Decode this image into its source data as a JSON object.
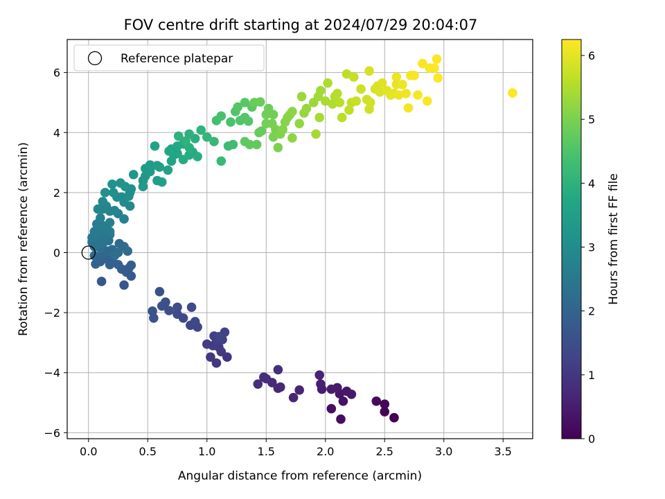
{
  "chart_data": {
    "type": "scatter",
    "title": "FOV centre drift starting at 2024/07/29 20:04:07",
    "xlabel": "Angular distance from reference (arcmin)",
    "ylabel": "Rotation from reference (arcmin)",
    "xlim": [
      -0.18,
      3.75
    ],
    "ylim": [
      -6.2,
      7.1
    ],
    "xticks": [
      0.0,
      0.5,
      1.0,
      1.5,
      2.0,
      2.5,
      3.0,
      3.5
    ],
    "xtick_labels": [
      "0.0",
      "0.5",
      "1.0",
      "1.5",
      "2.0",
      "2.5",
      "3.0",
      "3.5"
    ],
    "yticks": [
      -6,
      -4,
      -2,
      0,
      2,
      4,
      6
    ],
    "ytick_labels": [
      "−6",
      "−4",
      "−2",
      "0",
      "2",
      "4",
      "6"
    ],
    "grid": true,
    "legend_position": "top-left",
    "legend": [
      {
        "label": "Reference platepar",
        "marker": "hollow-circle",
        "x": 0.0,
        "y": 0.0
      }
    ],
    "colorbar": {
      "label": "Hours from first FF file",
      "colormap": "viridis",
      "range": [
        0,
        6.25
      ],
      "ticks": [
        0,
        1,
        2,
        3,
        4,
        5,
        6
      ],
      "tick_labels": [
        "0",
        "1",
        "2",
        "3",
        "4",
        "5",
        "6"
      ]
    },
    "points": [
      {
        "x": 2.58,
        "y": -5.5,
        "c": 0.0
      },
      {
        "x": 2.5,
        "y": -5.3,
        "c": 0.05
      },
      {
        "x": 2.5,
        "y": -5.05,
        "c": 0.1
      },
      {
        "x": 2.43,
        "y": -4.95,
        "c": 0.15
      },
      {
        "x": 2.13,
        "y": -5.55,
        "c": 0.2
      },
      {
        "x": 2.05,
        "y": -5.2,
        "c": 0.25
      },
      {
        "x": 2.15,
        "y": -4.95,
        "c": 0.3
      },
      {
        "x": 2.12,
        "y": -4.7,
        "c": 0.35
      },
      {
        "x": 2.18,
        "y": -4.62,
        "c": 0.4
      },
      {
        "x": 2.22,
        "y": -4.72,
        "c": 0.42
      },
      {
        "x": 2.1,
        "y": -4.5,
        "c": 0.45
      },
      {
        "x": 2.05,
        "y": -4.55,
        "c": 0.48
      },
      {
        "x": 1.97,
        "y": -4.55,
        "c": 0.5
      },
      {
        "x": 1.96,
        "y": -4.38,
        "c": 0.55
      },
      {
        "x": 1.95,
        "y": -4.08,
        "c": 0.6
      },
      {
        "x": 1.78,
        "y": -4.58,
        "c": 0.62
      },
      {
        "x": 1.73,
        "y": -4.83,
        "c": 0.65
      },
      {
        "x": 1.62,
        "y": -4.48,
        "c": 0.7
      },
      {
        "x": 1.6,
        "y": -4.52,
        "c": 0.72
      },
      {
        "x": 1.55,
        "y": -4.33,
        "c": 0.75
      },
      {
        "x": 1.5,
        "y": -4.2,
        "c": 0.78
      },
      {
        "x": 1.48,
        "y": -4.15,
        "c": 0.8
      },
      {
        "x": 1.43,
        "y": -4.38,
        "c": 0.82
      },
      {
        "x": 1.6,
        "y": -3.9,
        "c": 0.85
      },
      {
        "x": 1.17,
        "y": -3.48,
        "c": 0.95
      },
      {
        "x": 1.08,
        "y": -3.68,
        "c": 1.0
      },
      {
        "x": 1.03,
        "y": -3.48,
        "c": 1.02
      },
      {
        "x": 1.1,
        "y": -3.15,
        "c": 1.05
      },
      {
        "x": 1.12,
        "y": -3.3,
        "c": 1.08
      },
      {
        "x": 1.0,
        "y": -3.05,
        "c": 1.1
      },
      {
        "x": 1.05,
        "y": -3.1,
        "c": 1.12
      },
      {
        "x": 1.08,
        "y": -2.9,
        "c": 1.15
      },
      {
        "x": 1.06,
        "y": -2.78,
        "c": 1.18
      },
      {
        "x": 1.13,
        "y": -2.9,
        "c": 1.2
      },
      {
        "x": 1.15,
        "y": -2.65,
        "c": 1.22
      },
      {
        "x": 1.1,
        "y": -2.8,
        "c": 1.25
      },
      {
        "x": 0.92,
        "y": -2.48,
        "c": 1.3
      },
      {
        "x": 0.86,
        "y": -2.42,
        "c": 1.32
      },
      {
        "x": 0.9,
        "y": -2.3,
        "c": 1.35
      },
      {
        "x": 0.87,
        "y": -1.82,
        "c": 1.38
      },
      {
        "x": 0.8,
        "y": -2.18,
        "c": 1.4
      },
      {
        "x": 0.75,
        "y": -2.05,
        "c": 1.42
      },
      {
        "x": 0.75,
        "y": -1.82,
        "c": 1.45
      },
      {
        "x": 0.68,
        "y": -1.93,
        "c": 1.48
      },
      {
        "x": 0.65,
        "y": -1.65,
        "c": 1.5
      },
      {
        "x": 0.62,
        "y": -1.78,
        "c": 1.52
      },
      {
        "x": 0.6,
        "y": -1.3,
        "c": 1.55
      },
      {
        "x": 0.55,
        "y": -2.18,
        "c": 1.58
      },
      {
        "x": 0.54,
        "y": -1.95,
        "c": 1.6
      },
      {
        "x": 0.3,
        "y": -1.08,
        "c": 1.7
      },
      {
        "x": 0.11,
        "y": -0.96,
        "c": 1.72
      },
      {
        "x": 0.36,
        "y": -0.78,
        "c": 1.75
      },
      {
        "x": 0.32,
        "y": -0.65,
        "c": 1.78
      },
      {
        "x": 0.34,
        "y": -0.52,
        "c": 1.8
      },
      {
        "x": 0.36,
        "y": -0.42,
        "c": 1.82
      },
      {
        "x": 0.28,
        "y": -0.55,
        "c": 1.85
      },
      {
        "x": 0.25,
        "y": -0.4,
        "c": 1.88
      },
      {
        "x": 0.2,
        "y": -0.3,
        "c": 1.9
      },
      {
        "x": 0.18,
        "y": -0.4,
        "c": 1.92
      },
      {
        "x": 0.15,
        "y": -0.2,
        "c": 1.95
      },
      {
        "x": 0.1,
        "y": -0.3,
        "c": 1.98
      },
      {
        "x": 0.06,
        "y": -0.38,
        "c": 2.0
      },
      {
        "x": 0.08,
        "y": -0.15,
        "c": 2.02
      },
      {
        "x": 0.12,
        "y": -0.05,
        "c": 2.05
      },
      {
        "x": 0.05,
        "y": -0.1,
        "c": 2.08
      },
      {
        "x": 0.16,
        "y": 0.05,
        "c": 2.1
      },
      {
        "x": 0.2,
        "y": 0.1,
        "c": 2.12
      },
      {
        "x": 0.26,
        "y": 0.3,
        "c": 2.15
      },
      {
        "x": 0.3,
        "y": 0.2,
        "c": 2.18
      },
      {
        "x": 0.33,
        "y": 0.05,
        "c": 2.2
      },
      {
        "x": 0.25,
        "y": 0.0,
        "c": 2.22
      },
      {
        "x": 0.22,
        "y": -0.1,
        "c": 2.25
      },
      {
        "x": 0.1,
        "y": 0.15,
        "c": 2.28
      },
      {
        "x": 0.05,
        "y": 0.2,
        "c": 2.3
      },
      {
        "x": 0.03,
        "y": 0.35,
        "c": 2.32
      },
      {
        "x": 0.08,
        "y": 0.4,
        "c": 2.35
      },
      {
        "x": 0.12,
        "y": 0.3,
        "c": 2.38
      },
      {
        "x": 0.17,
        "y": 0.4,
        "c": 2.4
      },
      {
        "x": 0.18,
        "y": 0.6,
        "c": 2.42
      },
      {
        "x": 0.12,
        "y": 0.6,
        "c": 2.45
      },
      {
        "x": 0.07,
        "y": 0.55,
        "c": 2.48
      },
      {
        "x": 0.03,
        "y": 0.5,
        "c": 2.5
      },
      {
        "x": 0.05,
        "y": 0.7,
        "c": 2.52
      },
      {
        "x": 0.1,
        "y": 0.75,
        "c": 2.55
      },
      {
        "x": 0.15,
        "y": 0.75,
        "c": 2.58
      },
      {
        "x": 0.18,
        "y": 0.7,
        "c": 2.6
      },
      {
        "x": 0.12,
        "y": 0.9,
        "c": 2.62
      },
      {
        "x": 0.07,
        "y": 0.95,
        "c": 2.65
      },
      {
        "x": 0.18,
        "y": 1.0,
        "c": 2.68
      },
      {
        "x": 0.1,
        "y": 1.15,
        "c": 2.7
      },
      {
        "x": 0.3,
        "y": 1.12,
        "c": 2.72
      },
      {
        "x": 0.25,
        "y": 1.3,
        "c": 2.75
      },
      {
        "x": 0.18,
        "y": 1.38,
        "c": 2.78
      },
      {
        "x": 0.12,
        "y": 1.45,
        "c": 2.8
      },
      {
        "x": 0.08,
        "y": 1.45,
        "c": 2.82
      },
      {
        "x": 0.22,
        "y": 1.4,
        "c": 2.85
      },
      {
        "x": 0.15,
        "y": 1.55,
        "c": 2.88
      },
      {
        "x": 0.12,
        "y": 1.7,
        "c": 2.9
      },
      {
        "x": 0.35,
        "y": 1.55,
        "c": 2.92
      },
      {
        "x": 0.3,
        "y": 1.68,
        "c": 2.95
      },
      {
        "x": 0.28,
        "y": 1.85,
        "c": 2.98
      },
      {
        "x": 0.24,
        "y": 1.85,
        "c": 3.0
      },
      {
        "x": 0.34,
        "y": 1.88,
        "c": 3.02
      },
      {
        "x": 0.35,
        "y": 2.0,
        "c": 3.05
      },
      {
        "x": 0.36,
        "y": 2.12,
        "c": 3.08
      },
      {
        "x": 0.21,
        "y": 2.0,
        "c": 3.1
      },
      {
        "x": 0.14,
        "y": 2.0,
        "c": 3.12
      },
      {
        "x": 0.2,
        "y": 2.28,
        "c": 3.15
      },
      {
        "x": 0.27,
        "y": 2.32,
        "c": 3.18
      },
      {
        "x": 0.31,
        "y": 2.2,
        "c": 3.2
      },
      {
        "x": 0.38,
        "y": 2.6,
        "c": 3.25
      },
      {
        "x": 0.46,
        "y": 2.4,
        "c": 3.3
      },
      {
        "x": 0.46,
        "y": 2.2,
        "c": 3.32
      },
      {
        "x": 0.48,
        "y": 2.55,
        "c": 3.35
      },
      {
        "x": 0.52,
        "y": 2.7,
        "c": 3.38
      },
      {
        "x": 0.48,
        "y": 2.8,
        "c": 3.4
      },
      {
        "x": 0.52,
        "y": 2.92,
        "c": 3.42
      },
      {
        "x": 0.58,
        "y": 2.9,
        "c": 3.45
      },
      {
        "x": 0.6,
        "y": 2.85,
        "c": 3.48
      },
      {
        "x": 0.58,
        "y": 2.4,
        "c": 3.5
      },
      {
        "x": 0.62,
        "y": 2.35,
        "c": 3.52
      },
      {
        "x": 0.67,
        "y": 2.75,
        "c": 3.55
      },
      {
        "x": 0.56,
        "y": 3.55,
        "c": 3.6
      },
      {
        "x": 0.7,
        "y": 3.05,
        "c": 3.62
      },
      {
        "x": 0.72,
        "y": 3.25,
        "c": 3.65
      },
      {
        "x": 0.75,
        "y": 3.3,
        "c": 3.68
      },
      {
        "x": 0.7,
        "y": 3.45,
        "c": 3.7
      },
      {
        "x": 0.68,
        "y": 3.38,
        "c": 3.72
      },
      {
        "x": 0.75,
        "y": 3.55,
        "c": 3.75
      },
      {
        "x": 0.8,
        "y": 3.62,
        "c": 3.78
      },
      {
        "x": 0.8,
        "y": 3.1,
        "c": 3.8
      },
      {
        "x": 0.85,
        "y": 3.25,
        "c": 3.82
      },
      {
        "x": 0.88,
        "y": 3.35,
        "c": 3.85
      },
      {
        "x": 0.92,
        "y": 3.2,
        "c": 3.88
      },
      {
        "x": 0.85,
        "y": 3.5,
        "c": 3.9
      },
      {
        "x": 0.9,
        "y": 3.8,
        "c": 3.92
      },
      {
        "x": 0.85,
        "y": 3.95,
        "c": 3.95
      },
      {
        "x": 0.76,
        "y": 3.88,
        "c": 3.98
      },
      {
        "x": 0.82,
        "y": 3.72,
        "c": 4.0
      },
      {
        "x": 0.95,
        "y": 4.08,
        "c": 4.05
      },
      {
        "x": 1.0,
        "y": 3.85,
        "c": 4.1
      },
      {
        "x": 1.06,
        "y": 3.7,
        "c": 4.15
      },
      {
        "x": 1.12,
        "y": 3.05,
        "c": 4.2
      },
      {
        "x": 1.18,
        "y": 3.55,
        "c": 4.25
      },
      {
        "x": 1.22,
        "y": 3.6,
        "c": 4.3
      },
      {
        "x": 1.08,
        "y": 4.4,
        "c": 4.35
      },
      {
        "x": 1.12,
        "y": 4.55,
        "c": 4.4
      },
      {
        "x": 1.2,
        "y": 4.35,
        "c": 4.45
      },
      {
        "x": 1.24,
        "y": 4.7,
        "c": 4.5
      },
      {
        "x": 1.28,
        "y": 4.4,
        "c": 4.52
      },
      {
        "x": 1.32,
        "y": 4.5,
        "c": 4.55
      },
      {
        "x": 1.35,
        "y": 4.38,
        "c": 4.58
      },
      {
        "x": 1.26,
        "y": 4.85,
        "c": 4.6
      },
      {
        "x": 1.32,
        "y": 5.0,
        "c": 4.62
      },
      {
        "x": 1.38,
        "y": 4.85,
        "c": 4.65
      },
      {
        "x": 1.32,
        "y": 3.7,
        "c": 4.68
      },
      {
        "x": 1.36,
        "y": 3.6,
        "c": 4.7
      },
      {
        "x": 1.42,
        "y": 3.6,
        "c": 4.72
      },
      {
        "x": 1.44,
        "y": 4.0,
        "c": 4.75
      },
      {
        "x": 1.46,
        "y": 4.05,
        "c": 4.78
      },
      {
        "x": 1.4,
        "y": 5.0,
        "c": 4.8
      },
      {
        "x": 1.45,
        "y": 5.02,
        "c": 4.82
      },
      {
        "x": 1.52,
        "y": 4.8,
        "c": 4.85
      },
      {
        "x": 1.56,
        "y": 4.6,
        "c": 4.88
      },
      {
        "x": 1.5,
        "y": 4.6,
        "c": 4.9
      },
      {
        "x": 1.5,
        "y": 4.3,
        "c": 4.92
      },
      {
        "x": 1.55,
        "y": 4.3,
        "c": 4.95
      },
      {
        "x": 1.58,
        "y": 4.1,
        "c": 4.98
      },
      {
        "x": 1.56,
        "y": 3.85,
        "c": 5.0
      },
      {
        "x": 1.6,
        "y": 3.5,
        "c": 5.02
      },
      {
        "x": 1.62,
        "y": 3.95,
        "c": 5.05
      },
      {
        "x": 1.64,
        "y": 4.1,
        "c": 5.08
      },
      {
        "x": 1.66,
        "y": 4.35,
        "c": 5.1
      },
      {
        "x": 1.68,
        "y": 4.5,
        "c": 5.12
      },
      {
        "x": 1.7,
        "y": 4.6,
        "c": 5.15
      },
      {
        "x": 1.72,
        "y": 4.7,
        "c": 5.18
      },
      {
        "x": 1.72,
        "y": 3.82,
        "c": 5.2
      },
      {
        "x": 1.78,
        "y": 4.3,
        "c": 5.22
      },
      {
        "x": 1.82,
        "y": 4.65,
        "c": 5.25
      },
      {
        "x": 1.84,
        "y": 4.8,
        "c": 5.28
      },
      {
        "x": 1.8,
        "y": 5.2,
        "c": 5.3
      },
      {
        "x": 1.9,
        "y": 5.0,
        "c": 5.32
      },
      {
        "x": 1.94,
        "y": 5.2,
        "c": 5.35
      },
      {
        "x": 1.96,
        "y": 5.4,
        "c": 5.38
      },
      {
        "x": 1.92,
        "y": 3.95,
        "c": 5.4
      },
      {
        "x": 1.95,
        "y": 4.5,
        "c": 5.42
      },
      {
        "x": 2.0,
        "y": 5.05,
        "c": 5.45
      },
      {
        "x": 2.02,
        "y": 5.65,
        "c": 5.48
      },
      {
        "x": 2.06,
        "y": 4.95,
        "c": 5.5
      },
      {
        "x": 2.08,
        "y": 5.2,
        "c": 5.52
      },
      {
        "x": 2.1,
        "y": 5.3,
        "c": 5.55
      },
      {
        "x": 2.12,
        "y": 5.0,
        "c": 5.58
      },
      {
        "x": 2.14,
        "y": 4.5,
        "c": 5.6
      },
      {
        "x": 2.18,
        "y": 5.95,
        "c": 5.62
      },
      {
        "x": 2.2,
        "y": 4.75,
        "c": 5.65
      },
      {
        "x": 2.22,
        "y": 5.0,
        "c": 5.68
      },
      {
        "x": 2.24,
        "y": 5.85,
        "c": 5.7
      },
      {
        "x": 2.26,
        "y": 5.05,
        "c": 5.72
      },
      {
        "x": 2.3,
        "y": 5.45,
        "c": 5.75
      },
      {
        "x": 2.35,
        "y": 5.1,
        "c": 5.78
      },
      {
        "x": 2.37,
        "y": 4.78,
        "c": 5.8
      },
      {
        "x": 2.38,
        "y": 5.0,
        "c": 5.82
      },
      {
        "x": 2.37,
        "y": 6.05,
        "c": 5.85
      },
      {
        "x": 2.42,
        "y": 5.45,
        "c": 5.88
      },
      {
        "x": 2.44,
        "y": 5.55,
        "c": 5.9
      },
      {
        "x": 2.46,
        "y": 5.35,
        "c": 5.92
      },
      {
        "x": 2.48,
        "y": 5.65,
        "c": 5.95
      },
      {
        "x": 2.52,
        "y": 5.4,
        "c": 5.98
      },
      {
        "x": 2.55,
        "y": 5.25,
        "c": 6.0
      },
      {
        "x": 2.58,
        "y": 5.3,
        "c": 6.02
      },
      {
        "x": 2.6,
        "y": 5.6,
        "c": 6.04
      },
      {
        "x": 2.6,
        "y": 5.85,
        "c": 6.06
      },
      {
        "x": 2.62,
        "y": 5.25,
        "c": 6.08
      },
      {
        "x": 2.65,
        "y": 5.6,
        "c": 6.1
      },
      {
        "x": 2.68,
        "y": 5.3,
        "c": 6.12
      },
      {
        "x": 2.7,
        "y": 4.82,
        "c": 6.14
      },
      {
        "x": 2.72,
        "y": 5.9,
        "c": 6.16
      },
      {
        "x": 2.75,
        "y": 5.9,
        "c": 6.18
      },
      {
        "x": 2.78,
        "y": 5.25,
        "c": 6.19
      },
      {
        "x": 2.82,
        "y": 6.3,
        "c": 6.2
      },
      {
        "x": 2.86,
        "y": 5.05,
        "c": 6.21
      },
      {
        "x": 2.88,
        "y": 6.15,
        "c": 6.22
      },
      {
        "x": 2.92,
        "y": 6.15,
        "c": 6.23
      },
      {
        "x": 2.94,
        "y": 6.45,
        "c": 6.24
      },
      {
        "x": 2.95,
        "y": 5.82,
        "c": 6.24
      },
      {
        "x": 3.58,
        "y": 5.32,
        "c": 6.25
      }
    ]
  }
}
